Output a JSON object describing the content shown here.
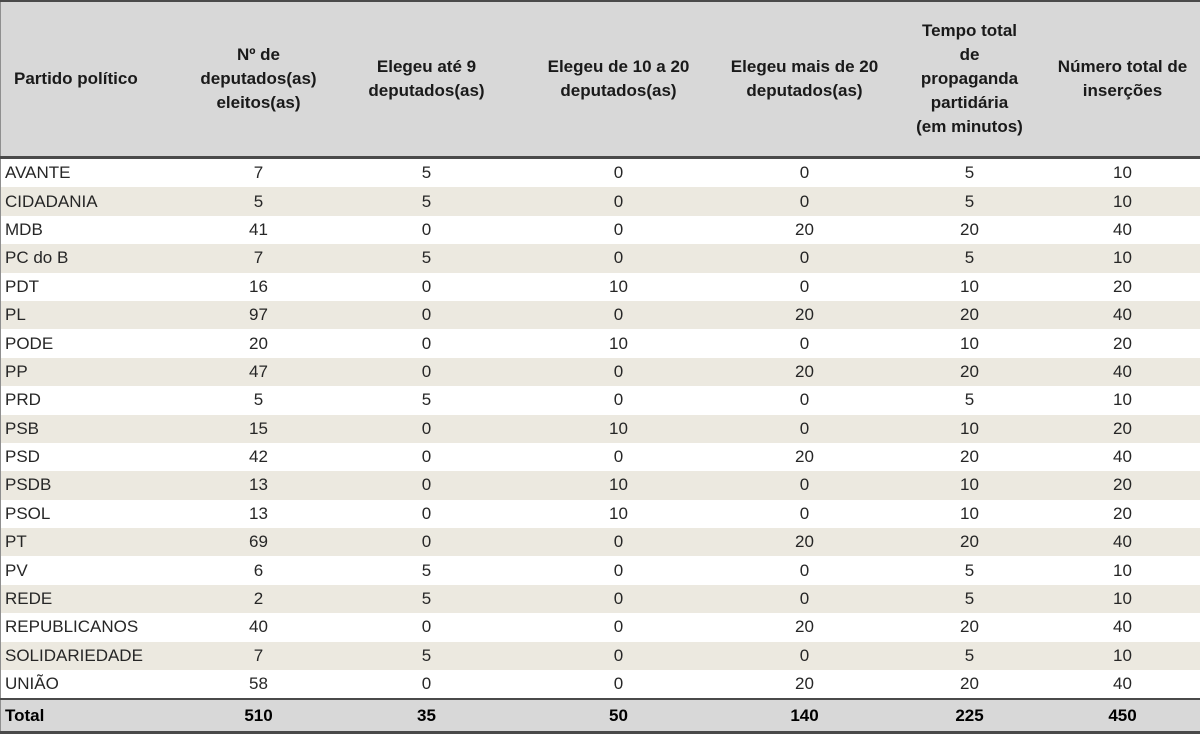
{
  "table": {
    "columns": [
      "Partido político",
      "Nº de\ndeputados(as)\neleitos(as)",
      "Elegeu até 9\ndeputados(as)",
      "Elegeu de 10 a 20\ndeputados(as)",
      "Elegeu mais de 20\ndeputados(as)",
      "Tempo total\nde\npropaganda\npartidária\n(em minutos)",
      "Número total de\ninserções"
    ],
    "rows": [
      {
        "party": "AVANTE",
        "values": [
          "7",
          "5",
          "0",
          "0",
          "5",
          "10"
        ]
      },
      {
        "party": "CIDADANIA",
        "values": [
          "5",
          "5",
          "0",
          "0",
          "5",
          "10"
        ]
      },
      {
        "party": "MDB",
        "values": [
          "41",
          "0",
          "0",
          "20",
          "20",
          "40"
        ]
      },
      {
        "party": "PC do B",
        "values": [
          "7",
          "5",
          "0",
          "0",
          "5",
          "10"
        ]
      },
      {
        "party": "PDT",
        "values": [
          "16",
          "0",
          "10",
          "0",
          "10",
          "20"
        ]
      },
      {
        "party": "PL",
        "values": [
          "97",
          "0",
          "0",
          "20",
          "20",
          "40"
        ]
      },
      {
        "party": "PODE",
        "values": [
          "20",
          "0",
          "10",
          "0",
          "10",
          "20"
        ]
      },
      {
        "party": "PP",
        "values": [
          "47",
          "0",
          "0",
          "20",
          "20",
          "40"
        ]
      },
      {
        "party": "PRD",
        "values": [
          "5",
          "5",
          "0",
          "0",
          "5",
          "10"
        ]
      },
      {
        "party": "PSB",
        "values": [
          "15",
          "0",
          "10",
          "0",
          "10",
          "20"
        ]
      },
      {
        "party": "PSD",
        "values": [
          "42",
          "0",
          "0",
          "20",
          "20",
          "40"
        ]
      },
      {
        "party": "PSDB",
        "values": [
          "13",
          "0",
          "10",
          "0",
          "10",
          "20"
        ]
      },
      {
        "party": "PSOL",
        "values": [
          "13",
          "0",
          "10",
          "0",
          "10",
          "20"
        ]
      },
      {
        "party": "PT",
        "values": [
          "69",
          "0",
          "0",
          "20",
          "20",
          "40"
        ]
      },
      {
        "party": "PV",
        "values": [
          "6",
          "5",
          "0",
          "0",
          "5",
          "10"
        ]
      },
      {
        "party": "REDE",
        "values": [
          "2",
          "5",
          "0",
          "0",
          "5",
          "10"
        ]
      },
      {
        "party": "REPUBLICANOS",
        "values": [
          "40",
          "0",
          "0",
          "20",
          "20",
          "40"
        ]
      },
      {
        "party": "SOLIDARIEDADE",
        "values": [
          "7",
          "5",
          "0",
          "0",
          "5",
          "10"
        ]
      },
      {
        "party": "UNIÃO",
        "values": [
          "58",
          "0",
          "0",
          "20",
          "20",
          "40"
        ]
      }
    ],
    "total": {
      "label": "Total",
      "values": [
        "510",
        "35",
        "50",
        "140",
        "225",
        "450"
      ]
    }
  },
  "colors": {
    "header_bg": "#d8d8d8",
    "stripe_bg": "#ece9e0",
    "total_bg": "#d8d8d8",
    "rule_dark": "#4a4a4a",
    "text": "#262626"
  }
}
